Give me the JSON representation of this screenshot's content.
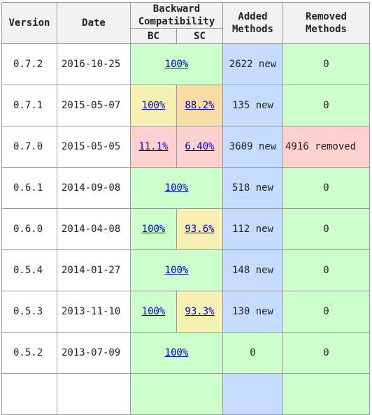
{
  "headers": {
    "version": "Version",
    "date": "Date",
    "backward": "Backward Compatibility",
    "bc": "BC",
    "sc": "SC",
    "added": "Added Methods",
    "removed": "Removed Methods"
  },
  "colors": {
    "ok": "#ccffcc",
    "added": "#c6dcff",
    "warning_light": "#f7f2b4",
    "warning": "#fcdca5",
    "bad": "#ffd0d0"
  },
  "rows": [
    {
      "version": "0.7.2",
      "date": "2016-10-25",
      "bc": "100%",
      "sc": "",
      "added": "2622 new",
      "removed": "0"
    },
    {
      "version": "0.7.1",
      "date": "2015-05-07",
      "bc": "100%",
      "sc": "88.2%",
      "added": "135 new",
      "removed": "0"
    },
    {
      "version": "0.7.0",
      "date": "2015-05-05",
      "bc": "11.1%",
      "sc": "6.40%",
      "added": "3609 new",
      "removed": "4916 removed"
    },
    {
      "version": "0.6.1",
      "date": "2014-09-08",
      "bc": "100%",
      "sc": "",
      "added": "518 new",
      "removed": "0"
    },
    {
      "version": "0.6.0",
      "date": "2014-04-08",
      "bc": "100%",
      "sc": "93.6%",
      "added": "112 new",
      "removed": "0"
    },
    {
      "version": "0.5.4",
      "date": "2014-01-27",
      "bc": "100%",
      "sc": "",
      "added": "148 new",
      "removed": "0"
    },
    {
      "version": "0.5.3",
      "date": "2013-11-10",
      "bc": "100%",
      "sc": "93.3%",
      "added": "130 new",
      "removed": "0"
    },
    {
      "version": "0.5.2",
      "date": "2013-07-09",
      "bc": "100%",
      "sc": "",
      "added": "0",
      "removed": "0"
    }
  ]
}
